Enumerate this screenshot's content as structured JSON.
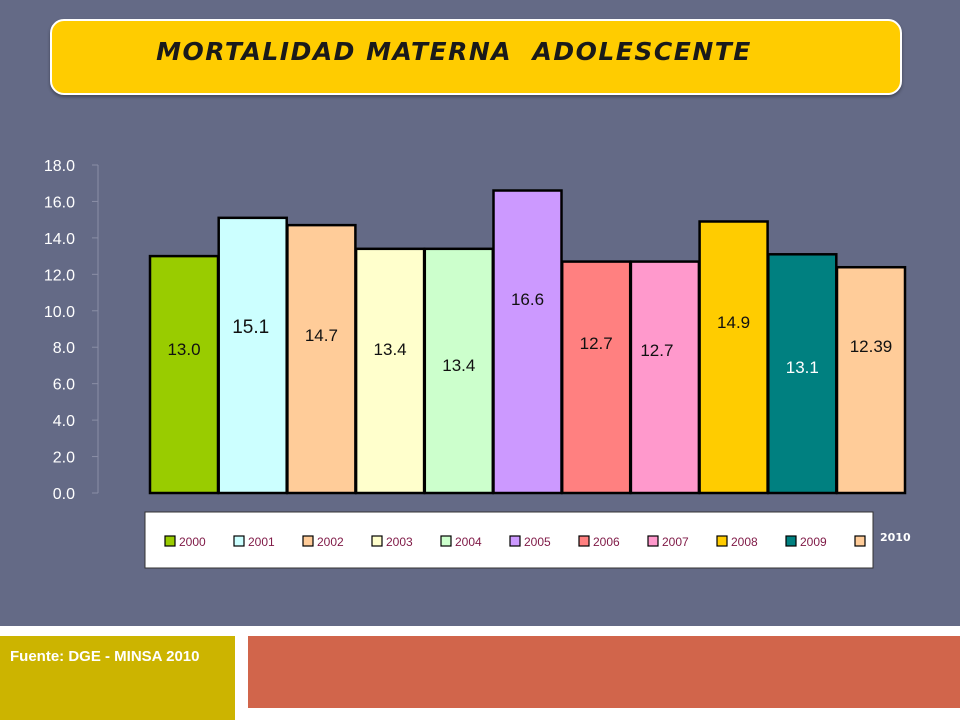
{
  "title": "MORTALIDAD MATERNA  ADOLESCENTE",
  "source": "Fuente: DGE - MINSA 2010",
  "outside_label": "2010",
  "colors": {
    "background": "#646a86",
    "title_banner": "#ffcc00",
    "source_box": "#ccb400",
    "footer_bar": "#d1654b",
    "legend_text": "#7f1946"
  },
  "chart_data": {
    "type": "bar",
    "title": "",
    "xlabel": "",
    "ylabel": "",
    "ylim": [
      0,
      18
    ],
    "yticks": [
      "0.0",
      "2.0",
      "4.0",
      "6.0",
      "8.0",
      "10.0",
      "12.0",
      "14.0",
      "16.0",
      "18.0"
    ],
    "grid": false,
    "legend_position": "bottom",
    "series": [
      {
        "name": "2000",
        "value": 13.0,
        "label": "13.0",
        "color": "#99cc00"
      },
      {
        "name": "2001",
        "value": 15.1,
        "label": "15.1",
        "color": "#ccffff"
      },
      {
        "name": "2002",
        "value": 14.7,
        "label": "14.7",
        "color": "#ffcc99"
      },
      {
        "name": "2003",
        "value": 13.4,
        "label": "13.4",
        "color": "#ffffcc"
      },
      {
        "name": "2004",
        "value": 13.4,
        "label": "13.4",
        "color": "#ccffcc"
      },
      {
        "name": "2005",
        "value": 16.6,
        "label": "16.6",
        "color": "#cc99ff"
      },
      {
        "name": "2006",
        "value": 12.7,
        "label": "12.7",
        "color": "#ff8080"
      },
      {
        "name": "2007",
        "value": 12.7,
        "label": "12.7",
        "color": "#ff99cc"
      },
      {
        "name": "2008",
        "value": 14.9,
        "label": "14.9",
        "color": "#ffcc00"
      },
      {
        "name": "2009",
        "value": 13.1,
        "label": "13.1",
        "color": "#008080"
      },
      {
        "name": "",
        "value": 12.39,
        "label": "12.39",
        "color": "#ffcc99"
      }
    ]
  }
}
